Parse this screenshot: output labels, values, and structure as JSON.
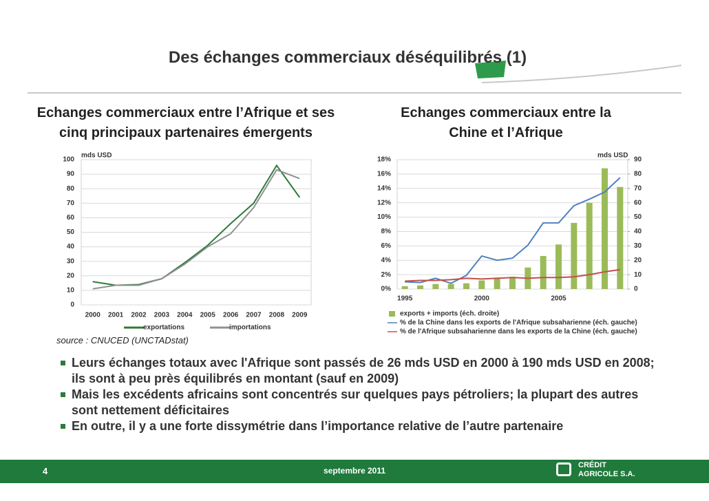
{
  "header": {
    "title": "Des échanges commerciaux déséquilibrés (1)"
  },
  "chart_data": [
    {
      "type": "line",
      "title": "Echanges commerciaux entre l’Afrique et ses cinq principaux partenaires émergents",
      "unit_label": "mds USD",
      "categories": [
        "2000",
        "2001",
        "2002",
        "2003",
        "2004",
        "2005",
        "2006",
        "2007",
        "2008",
        "2009"
      ],
      "series": [
        {
          "name": "exportations",
          "color": "#2f7a3b",
          "values": [
            16,
            13.5,
            14,
            18,
            29,
            41,
            56,
            70,
            96,
            74
          ]
        },
        {
          "name": "importations",
          "color": "#909090",
          "values": [
            11,
            13.5,
            13.5,
            18,
            28,
            40,
            49,
            67,
            93,
            87
          ]
        }
      ],
      "ylim": [
        0,
        100
      ],
      "yticks": [
        0,
        10,
        20,
        30,
        40,
        50,
        60,
        70,
        80,
        90,
        100
      ],
      "grid": true,
      "legend": "bottom"
    },
    {
      "type": "combo",
      "title": "Echanges commerciaux entre la Chine et l’Afrique",
      "unit_label": "mds USD",
      "categories": [
        "1995",
        null,
        null,
        null,
        null,
        "2000",
        null,
        null,
        null,
        null,
        "2005",
        null,
        null,
        null,
        null
      ],
      "series": [
        {
          "name": "exports + imports (éch. droite)",
          "type": "bar",
          "axis": "y2",
          "color": "#9bbb59",
          "values": [
            2,
            2.5,
            3.5,
            3.5,
            4,
            6,
            8,
            8.5,
            15,
            23,
            31,
            46,
            60,
            84,
            71
          ]
        },
        {
          "name": "% de la Chine dans les exports de l'Afrique subsaharienne (éch. gauche)",
          "type": "line",
          "color": "#4f81bd",
          "values": [
            1.0,
            0.9,
            1.5,
            0.8,
            1.9,
            4.6,
            4.0,
            4.3,
            6.1,
            9.2,
            9.2,
            11.6,
            12.5,
            13.5,
            15.5
          ]
        },
        {
          "name": "% de l'Afrique subsaharienne dans les exports de la Chine (éch. gauche)",
          "type": "line",
          "color": "#c0504d",
          "values": [
            1.1,
            1.2,
            1.2,
            1.3,
            1.5,
            1.4,
            1.5,
            1.6,
            1.5,
            1.6,
            1.6,
            1.7,
            2.0,
            2.4,
            2.7
          ]
        }
      ],
      "ylim": [
        0,
        18
      ],
      "yticks": [
        {
          "value": 0,
          "label": "0%"
        },
        {
          "value": 2,
          "label": "2%"
        },
        {
          "value": 4,
          "label": "4%"
        },
        {
          "value": 6,
          "label": "6%"
        },
        {
          "value": 8,
          "label": "8%"
        },
        {
          "value": 10,
          "label": "10%"
        },
        {
          "value": 12,
          "label": "12%"
        },
        {
          "value": 14,
          "label": "14%"
        },
        {
          "value": 16,
          "label": "16%"
        },
        {
          "value": 18,
          "label": "18%"
        }
      ],
      "y2lim": [
        0,
        90
      ],
      "y2ticks": [
        0,
        10,
        20,
        30,
        40,
        50,
        60,
        70,
        80,
        90
      ],
      "grid": true,
      "legend": "bottom"
    }
  ],
  "source": "source : CNUCED (UNCTADstat)",
  "bullets": [
    "Leurs échanges totaux avec l'Afrique sont passés de 26 mds USD en 2000 à 190 mds USD en 2008; ils sont à peu près équilibrés en montant (sauf en 2009)",
    "Mais les excédents africains sont concentrés sur quelques pays pétroliers; la plupart des autres sont nettement déficitaires",
    "En outre, il y a une forte dissymétrie dans l’importance relative de l’autre partenaire"
  ],
  "footer": {
    "page": "4",
    "date": "septembre 2011",
    "logo": [
      "CRÉDIT",
      "AGRICOLE S.A."
    ]
  }
}
